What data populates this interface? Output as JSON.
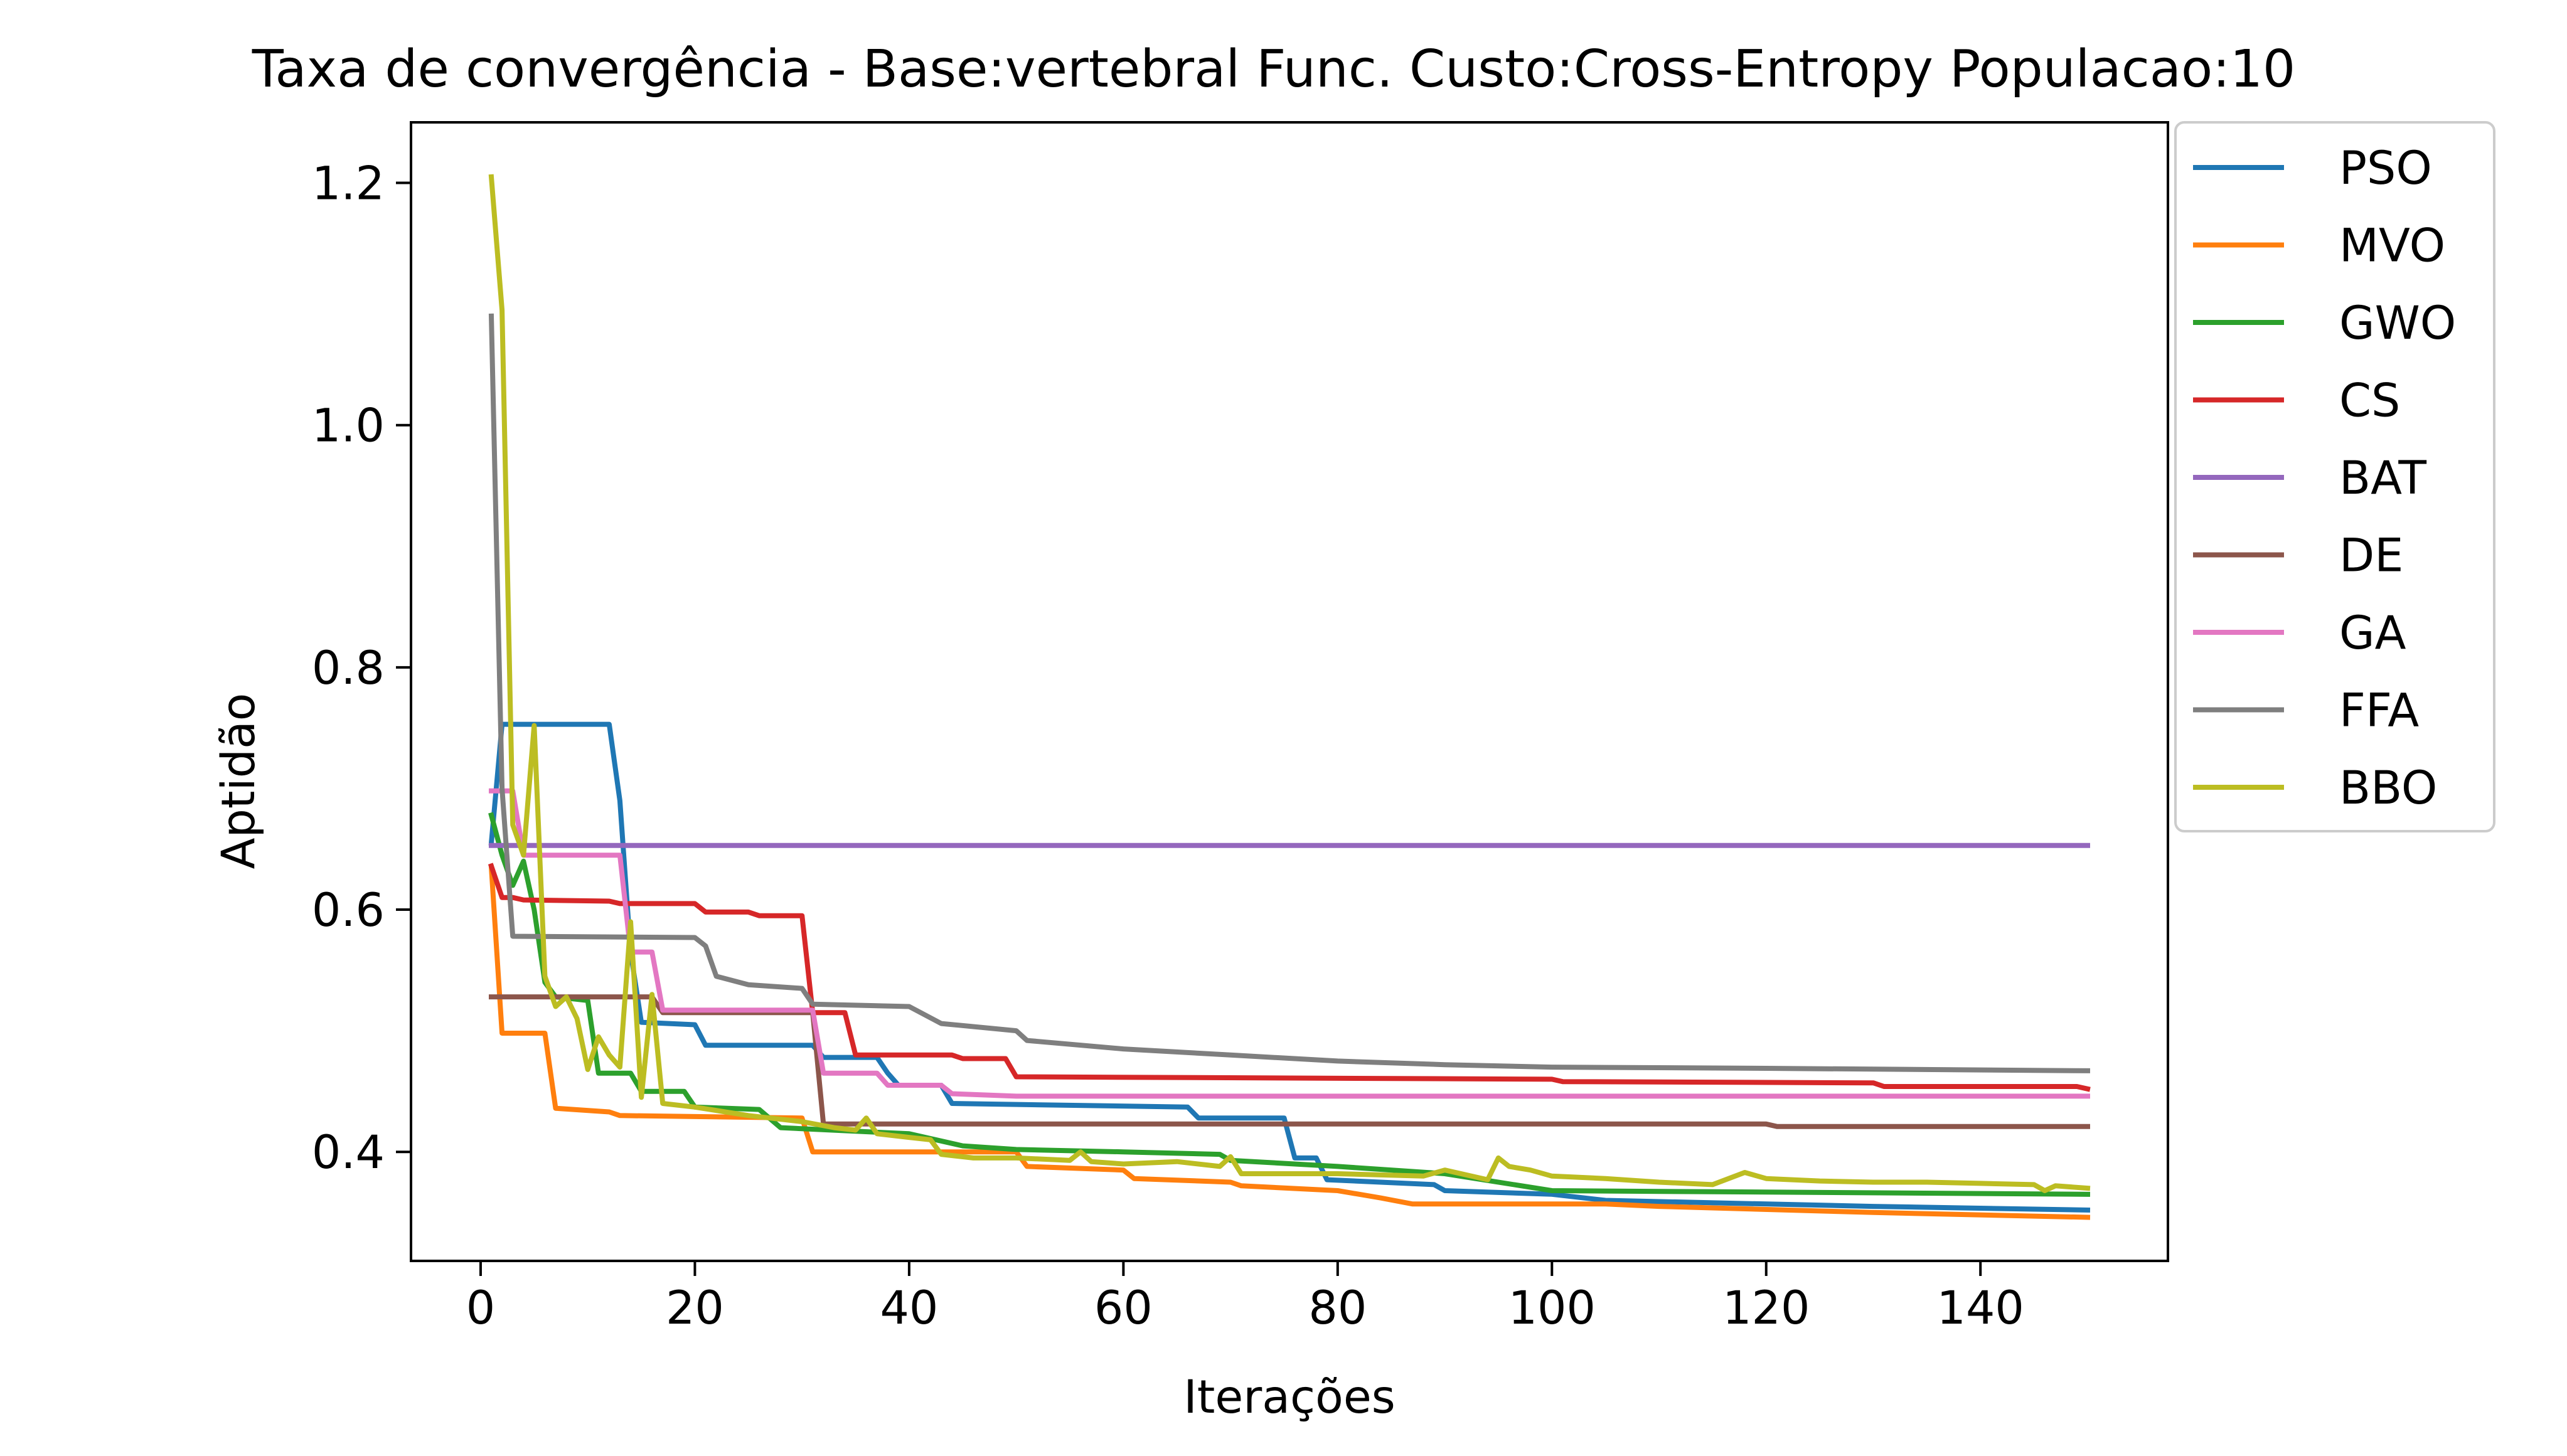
{
  "chart_data": {
    "type": "line",
    "title": "Taxa de convergência - Base:vertebral Func. Custo:Cross-Entropy Populacao:10",
    "xlabel": "Iterações",
    "ylabel": "Aptidão",
    "xlim": [
      -6.5,
      157.5
    ],
    "ylim": [
      0.31,
      1.25
    ],
    "xticks": [
      0,
      20,
      40,
      60,
      80,
      100,
      120,
      140
    ],
    "yticks": [
      0.4,
      0.6,
      0.8,
      1.0,
      1.2
    ],
    "xtick_labels": [
      "0",
      "20",
      "40",
      "60",
      "80",
      "100",
      "120",
      "140"
    ],
    "ytick_labels": [
      "0.4",
      "0.6",
      "0.8",
      "1.0",
      "1.2"
    ],
    "grid": false,
    "legend_position": "outside right, top",
    "series": [
      {
        "name": "PSO",
        "color": "#1f77b4",
        "points": [
          [
            1,
            0.655
          ],
          [
            2,
            0.753
          ],
          [
            12,
            0.753
          ],
          [
            13,
            0.69
          ],
          [
            14,
            0.565
          ],
          [
            15,
            0.507
          ],
          [
            20,
            0.505
          ],
          [
            21,
            0.488
          ],
          [
            31,
            0.488
          ],
          [
            32,
            0.478
          ],
          [
            37,
            0.478
          ],
          [
            38,
            0.465
          ],
          [
            39,
            0.455
          ],
          [
            43,
            0.455
          ],
          [
            44,
            0.44
          ],
          [
            66,
            0.437
          ],
          [
            67,
            0.428
          ],
          [
            75,
            0.428
          ],
          [
            76,
            0.395
          ],
          [
            78,
            0.395
          ],
          [
            79,
            0.377
          ],
          [
            89,
            0.373
          ],
          [
            90,
            0.368
          ],
          [
            100,
            0.365
          ],
          [
            105,
            0.36
          ],
          [
            130,
            0.355
          ],
          [
            150,
            0.352
          ]
        ]
      },
      {
        "name": "MVO",
        "color": "#ff7f0e",
        "points": [
          [
            1,
            0.635
          ],
          [
            2,
            0.498
          ],
          [
            6,
            0.498
          ],
          [
            7,
            0.436
          ],
          [
            12,
            0.433
          ],
          [
            13,
            0.43
          ],
          [
            30,
            0.428
          ],
          [
            31,
            0.4
          ],
          [
            50,
            0.4
          ],
          [
            51,
            0.388
          ],
          [
            60,
            0.385
          ],
          [
            61,
            0.378
          ],
          [
            70,
            0.375
          ],
          [
            71,
            0.372
          ],
          [
            80,
            0.368
          ],
          [
            84,
            0.362
          ],
          [
            87,
            0.357
          ],
          [
            105,
            0.357
          ],
          [
            110,
            0.355
          ],
          [
            130,
            0.35
          ],
          [
            150,
            0.346
          ]
        ]
      },
      {
        "name": "GWO",
        "color": "#2ca02c",
        "points": [
          [
            1,
            0.678
          ],
          [
            2,
            0.645
          ],
          [
            3,
            0.62
          ],
          [
            4,
            0.64
          ],
          [
            5,
            0.6
          ],
          [
            6,
            0.54
          ],
          [
            7,
            0.528
          ],
          [
            10,
            0.525
          ],
          [
            11,
            0.465
          ],
          [
            14,
            0.465
          ],
          [
            15,
            0.45
          ],
          [
            19,
            0.45
          ],
          [
            20,
            0.437
          ],
          [
            26,
            0.435
          ],
          [
            28,
            0.42
          ],
          [
            40,
            0.415
          ],
          [
            45,
            0.405
          ],
          [
            50,
            0.402
          ],
          [
            60,
            0.4
          ],
          [
            69,
            0.398
          ],
          [
            70,
            0.393
          ],
          [
            80,
            0.388
          ],
          [
            90,
            0.382
          ],
          [
            100,
            0.368
          ],
          [
            150,
            0.365
          ]
        ]
      },
      {
        "name": "CS",
        "color": "#d62728",
        "points": [
          [
            1,
            0.636
          ],
          [
            2,
            0.61
          ],
          [
            3,
            0.61
          ],
          [
            4,
            0.608
          ],
          [
            12,
            0.607
          ],
          [
            13,
            0.605
          ],
          [
            20,
            0.605
          ],
          [
            21,
            0.598
          ],
          [
            25,
            0.598
          ],
          [
            26,
            0.595
          ],
          [
            30,
            0.595
          ],
          [
            31,
            0.515
          ],
          [
            34,
            0.515
          ],
          [
            35,
            0.48
          ],
          [
            44,
            0.48
          ],
          [
            45,
            0.477
          ],
          [
            49,
            0.477
          ],
          [
            50,
            0.462
          ],
          [
            100,
            0.46
          ],
          [
            101,
            0.458
          ],
          [
            130,
            0.457
          ],
          [
            131,
            0.454
          ],
          [
            149,
            0.454
          ],
          [
            150,
            0.452
          ]
        ]
      },
      {
        "name": "BAT",
        "color": "#9467bd",
        "points": [
          [
            1,
            0.653
          ],
          [
            150,
            0.653
          ]
        ]
      },
      {
        "name": "DE",
        "color": "#8c564b",
        "points": [
          [
            1,
            0.528
          ],
          [
            16,
            0.528
          ],
          [
            17,
            0.515
          ],
          [
            31,
            0.515
          ],
          [
            32,
            0.423
          ],
          [
            120,
            0.423
          ],
          [
            121,
            0.421
          ],
          [
            150,
            0.421
          ]
        ]
      },
      {
        "name": "GA",
        "color": "#e377c2",
        "points": [
          [
            1,
            0.698
          ],
          [
            3,
            0.698
          ],
          [
            4,
            0.645
          ],
          [
            13,
            0.645
          ],
          [
            14,
            0.565
          ],
          [
            15,
            0.565
          ],
          [
            16,
            0.565
          ],
          [
            17,
            0.517
          ],
          [
            31,
            0.517
          ],
          [
            32,
            0.465
          ],
          [
            37,
            0.465
          ],
          [
            38,
            0.455
          ],
          [
            43,
            0.455
          ],
          [
            44,
            0.448
          ],
          [
            50,
            0.446
          ],
          [
            150,
            0.446
          ]
        ]
      },
      {
        "name": "FFA",
        "color": "#7f7f7f",
        "points": [
          [
            1,
            1.09
          ],
          [
            2,
            0.7
          ],
          [
            3,
            0.578
          ],
          [
            20,
            0.577
          ],
          [
            21,
            0.57
          ],
          [
            22,
            0.545
          ],
          [
            25,
            0.538
          ],
          [
            30,
            0.535
          ],
          [
            31,
            0.522
          ],
          [
            40,
            0.52
          ],
          [
            43,
            0.506
          ],
          [
            50,
            0.5
          ],
          [
            51,
            0.492
          ],
          [
            60,
            0.485
          ],
          [
            70,
            0.48
          ],
          [
            80,
            0.475
          ],
          [
            90,
            0.472
          ],
          [
            100,
            0.47
          ],
          [
            120,
            0.469
          ],
          [
            150,
            0.467
          ]
        ]
      },
      {
        "name": "BBO",
        "color": "#bcbd22",
        "points": [
          [
            1,
            1.205
          ],
          [
            2,
            1.095
          ],
          [
            3,
            0.67
          ],
          [
            4,
            0.645
          ],
          [
            5,
            0.752
          ],
          [
            6,
            0.545
          ],
          [
            7,
            0.52
          ],
          [
            8,
            0.528
          ],
          [
            9,
            0.51
          ],
          [
            10,
            0.468
          ],
          [
            11,
            0.495
          ],
          [
            12,
            0.48
          ],
          [
            13,
            0.47
          ],
          [
            14,
            0.59
          ],
          [
            15,
            0.445
          ],
          [
            16,
            0.53
          ],
          [
            17,
            0.44
          ],
          [
            20,
            0.437
          ],
          [
            25,
            0.43
          ],
          [
            30,
            0.425
          ],
          [
            33,
            0.42
          ],
          [
            35,
            0.418
          ],
          [
            36,
            0.428
          ],
          [
            37,
            0.415
          ],
          [
            40,
            0.412
          ],
          [
            42,
            0.41
          ],
          [
            43,
            0.398
          ],
          [
            46,
            0.395
          ],
          [
            50,
            0.395
          ],
          [
            55,
            0.393
          ],
          [
            56,
            0.4
          ],
          [
            57,
            0.392
          ],
          [
            60,
            0.39
          ],
          [
            65,
            0.392
          ],
          [
            69,
            0.388
          ],
          [
            70,
            0.396
          ],
          [
            71,
            0.382
          ],
          [
            80,
            0.382
          ],
          [
            88,
            0.38
          ],
          [
            90,
            0.385
          ],
          [
            94,
            0.377
          ],
          [
            95,
            0.395
          ],
          [
            96,
            0.388
          ],
          [
            98,
            0.385
          ],
          [
            100,
            0.38
          ],
          [
            105,
            0.378
          ],
          [
            110,
            0.375
          ],
          [
            115,
            0.373
          ],
          [
            118,
            0.383
          ],
          [
            120,
            0.378
          ],
          [
            125,
            0.376
          ],
          [
            130,
            0.375
          ],
          [
            135,
            0.375
          ],
          [
            140,
            0.374
          ],
          [
            145,
            0.373
          ],
          [
            146,
            0.368
          ],
          [
            147,
            0.372
          ],
          [
            150,
            0.37
          ]
        ]
      }
    ]
  }
}
